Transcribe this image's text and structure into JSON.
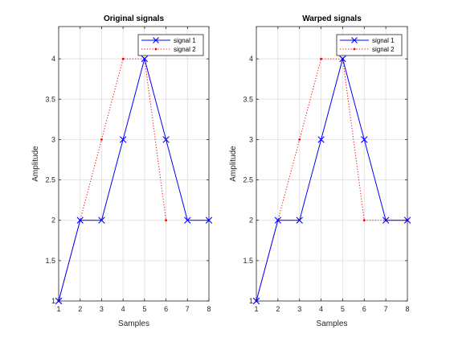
{
  "chart_data": [
    {
      "type": "line",
      "title": "Original signals",
      "xlabel": "Samples",
      "ylabel": "Amplitude",
      "xlim": [
        1,
        8
      ],
      "ylim": [
        1,
        4.4
      ],
      "x_ticks": [
        "1",
        "2",
        "3",
        "4",
        "5",
        "6",
        "7",
        "8"
      ],
      "y_ticks": [
        "1",
        "1.5",
        "2",
        "2.5",
        "3",
        "3.5",
        "4"
      ],
      "grid": true,
      "legend_position": "top-right",
      "series": [
        {
          "name": "signal 1",
          "x": [
            1,
            2,
            3,
            4,
            5,
            6,
            7,
            8
          ],
          "y": [
            1,
            2,
            2,
            3,
            4,
            3,
            2,
            2
          ],
          "color": "#0000ff",
          "line_style": "solid",
          "marker": "x"
        },
        {
          "name": "signal 2",
          "x": [
            1,
            2,
            3,
            4,
            5,
            6
          ],
          "y": [
            1,
            2,
            3,
            4,
            4,
            2
          ],
          "color": "#ff0000",
          "line_style": "dotted",
          "marker": "dot"
        }
      ]
    },
    {
      "type": "line",
      "title": "Warped signals",
      "xlabel": "Samples",
      "ylabel": "Amplitude",
      "xlim": [
        1,
        8
      ],
      "ylim": [
        1,
        4.4
      ],
      "x_ticks": [
        "1",
        "2",
        "3",
        "4",
        "5",
        "6",
        "7",
        "8"
      ],
      "y_ticks": [
        "1",
        "1.5",
        "2",
        "2.5",
        "3",
        "3.5",
        "4"
      ],
      "grid": true,
      "legend_position": "top-right",
      "series": [
        {
          "name": "signal 1",
          "x": [
            1,
            2,
            3,
            4,
            5,
            6,
            7,
            8
          ],
          "y": [
            1,
            2,
            2,
            3,
            4,
            3,
            2,
            2
          ],
          "color": "#0000ff",
          "line_style": "solid",
          "marker": "x"
        },
        {
          "name": "signal 2",
          "x": [
            1,
            2,
            3,
            4,
            5,
            6,
            7,
            8
          ],
          "y": [
            1,
            2,
            3,
            4,
            4,
            2,
            2,
            2
          ],
          "color": "#ff0000",
          "line_style": "dotted",
          "marker": "dot"
        }
      ]
    }
  ]
}
